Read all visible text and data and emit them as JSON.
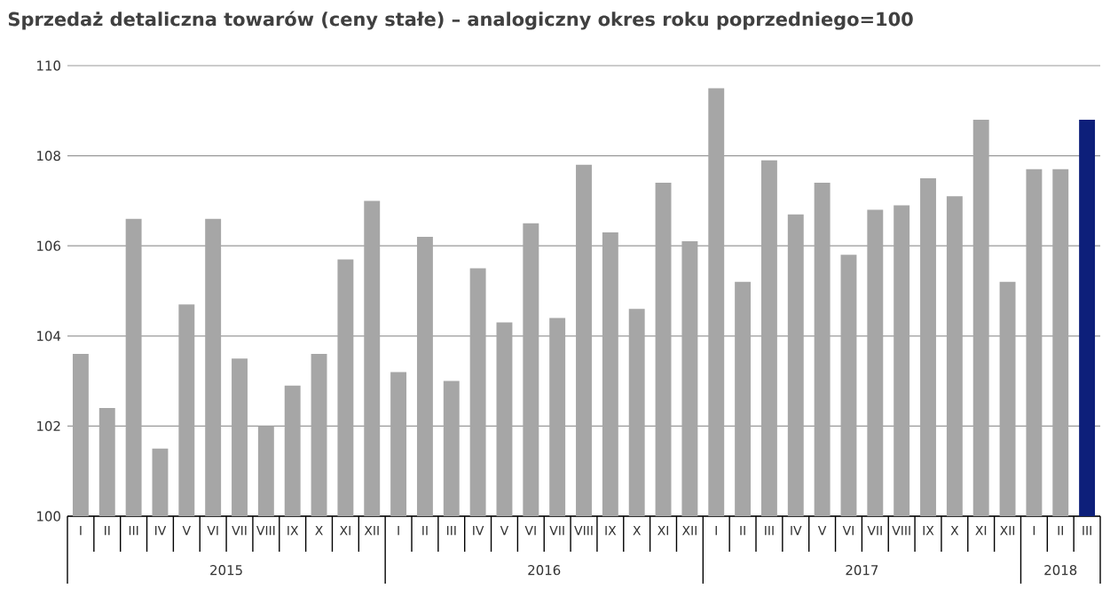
{
  "chart_data": {
    "type": "bar",
    "title": "Sprzedaż detaliczna towarów (ceny stałe) – analogiczny okres roku poprzedniego=100",
    "categories": [
      "I",
      "II",
      "III",
      "IV",
      "V",
      "VI",
      "VII",
      "VIII",
      "IX",
      "X",
      "XI",
      "XII",
      "I",
      "II",
      "III",
      "IV",
      "V",
      "VI",
      "VII",
      "VIII",
      "IX",
      "X",
      "XI",
      "XII",
      "I",
      "II",
      "III",
      "IV",
      "V",
      "VI",
      "VII",
      "VIII",
      "IX",
      "X",
      "XI",
      "XII",
      "I",
      "II",
      "III"
    ],
    "values": [
      103.6,
      102.4,
      106.6,
      101.5,
      104.7,
      106.6,
      103.5,
      102.0,
      102.9,
      103.6,
      105.7,
      107.0,
      103.2,
      106.2,
      103.0,
      105.5,
      104.3,
      106.5,
      104.4,
      107.8,
      106.3,
      104.6,
      107.4,
      106.1,
      109.5,
      105.2,
      107.9,
      106.7,
      107.4,
      105.8,
      106.8,
      106.9,
      107.5,
      107.1,
      108.8,
      105.2,
      107.7,
      107.7,
      108.8
    ],
    "colors": [
      "#a6a6a6",
      "#a6a6a6",
      "#a6a6a6",
      "#a6a6a6",
      "#a6a6a6",
      "#a6a6a6",
      "#a6a6a6",
      "#a6a6a6",
      "#a6a6a6",
      "#a6a6a6",
      "#a6a6a6",
      "#a6a6a6",
      "#a6a6a6",
      "#a6a6a6",
      "#a6a6a6",
      "#a6a6a6",
      "#a6a6a6",
      "#a6a6a6",
      "#a6a6a6",
      "#a6a6a6",
      "#a6a6a6",
      "#a6a6a6",
      "#a6a6a6",
      "#a6a6a6",
      "#a6a6a6",
      "#a6a6a6",
      "#a6a6a6",
      "#a6a6a6",
      "#a6a6a6",
      "#a6a6a6",
      "#a6a6a6",
      "#a6a6a6",
      "#a6a6a6",
      "#a6a6a6",
      "#a6a6a6",
      "#a6a6a6",
      "#a6a6a6",
      "#a6a6a6",
      "#0d1f7a"
    ],
    "ylim": [
      100,
      110
    ],
    "yticks": [
      100,
      102,
      104,
      106,
      108,
      110
    ],
    "grid": "y",
    "annotations": [
      "2015",
      "2016",
      "2017",
      "2018"
    ]
  }
}
